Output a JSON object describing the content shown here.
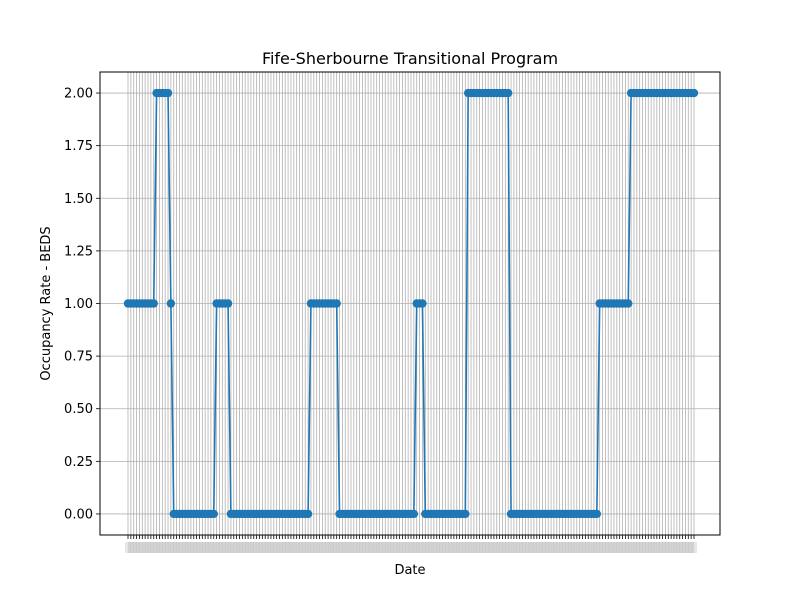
{
  "chart_data": {
    "type": "line",
    "title": "Fife-Sherbourne Transitional Program",
    "xlabel": "Date",
    "ylabel": "Occupancy Rate - BEDS",
    "ylim": [
      -0.1,
      2.1
    ],
    "yticks": [
      "0.00",
      "0.25",
      "0.50",
      "0.75",
      "1.00",
      "1.25",
      "1.50",
      "1.75",
      "2.00"
    ],
    "grid": true,
    "line_color": "#1f77b4",
    "marker": "circle",
    "x_tick_labels_legible": false,
    "series": [
      {
        "values": [
          1,
          1,
          1,
          1,
          1,
          1,
          1,
          1,
          1,
          1,
          2,
          2,
          2,
          2,
          2,
          1,
          0,
          0,
          0,
          0,
          0,
          0,
          0,
          0,
          0,
          0,
          0,
          0,
          0,
          0,
          0,
          1,
          1,
          1,
          1,
          1,
          0,
          0,
          0,
          0,
          0,
          0,
          0,
          0,
          0,
          0,
          0,
          0,
          0,
          0,
          0,
          0,
          0,
          0,
          0,
          0,
          0,
          0,
          0,
          0,
          0,
          0,
          0,
          0,
          1,
          1,
          1,
          1,
          1,
          1,
          1,
          1,
          1,
          1,
          0,
          0,
          0,
          0,
          0,
          0,
          0,
          0,
          0,
          0,
          0,
          0,
          0,
          0,
          0,
          0,
          0,
          0,
          0,
          0,
          0,
          0,
          0,
          0,
          0,
          0,
          0,
          1,
          1,
          1,
          0,
          0,
          0,
          0,
          0,
          0,
          0,
          0,
          0,
          0,
          0,
          0,
          0,
          0,
          0,
          2,
          2,
          2,
          2,
          2,
          2,
          2,
          2,
          2,
          2,
          2,
          2,
          2,
          2,
          2,
          0,
          0,
          0,
          0,
          0,
          0,
          0,
          0,
          0,
          0,
          0,
          0,
          0,
          0,
          0,
          0,
          0,
          0,
          0,
          0,
          0,
          0,
          0,
          0,
          0,
          0,
          0,
          0,
          0,
          0,
          0,
          1,
          1,
          1,
          1,
          1,
          1,
          1,
          1,
          1,
          1,
          1,
          2,
          2,
          2,
          2,
          2,
          2,
          2,
          2,
          2,
          2,
          2,
          2,
          2,
          2,
          2,
          2,
          2,
          2,
          2,
          2,
          2,
          2,
          2
        ]
      }
    ]
  }
}
